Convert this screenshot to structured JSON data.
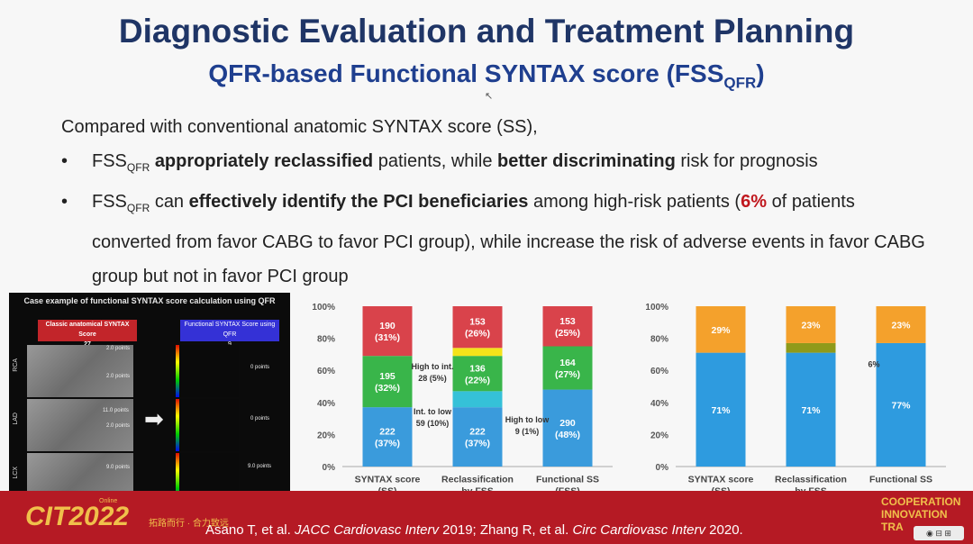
{
  "slide": {
    "title": "Diagnostic Evaluation and Treatment Planning",
    "subtitle_main": "QFR-based Functional SYNTAX score (FSS",
    "subtitle_sub": "QFR",
    "subtitle_end": ")",
    "intro": "Compared with conventional anatomic SYNTAX score (SS),"
  },
  "bullets": {
    "b1": {
      "fss": "FSS",
      "fss_sub": "QFR",
      "p1": "appropriately reclassified",
      "p2": "patients, while",
      "p3": "better discriminating",
      "p4": "risk for prognosis"
    },
    "b2": {
      "fss": "FSS",
      "fss_sub": "QFR",
      "p1": "can",
      "p2": "effectively identify the PCI beneficiaries",
      "p3": "among high-risk patients (",
      "pct": "6%",
      "p4": "of",
      "p5": "patients converted from favor CABG to favor PCI group), while increase the risk of adverse",
      "p6": "events in favor CABG group but not in favor PCI group"
    }
  },
  "case_panel": {
    "title": "Case example of functional SYNTAX score calculation using QFR",
    "classic_label": "Classic anatomical SYNTAX Score",
    "classic_value": "27",
    "functional_label": "Functional SYNTAX Score using QFR",
    "functional_value": "9",
    "vessels": [
      "RCA",
      "LAD",
      "LCX"
    ],
    "points": [
      "2.0 points",
      "2.0 points",
      "11.0 points",
      "2.0 points",
      "9.0 points"
    ],
    "qfr_points": [
      "0 points",
      "0 points",
      "9.0 points"
    ]
  },
  "chart_data": [
    {
      "type": "bar",
      "stacked": true,
      "categories": [
        [
          "SYNTAX score",
          "(SS)"
        ],
        [
          "Reclassification",
          "by FSS"
        ],
        [
          "Functional SS",
          "(FSS)"
        ]
      ],
      "ylim": [
        0,
        100
      ],
      "yticks": [
        "0%",
        "20%",
        "40%",
        "60%",
        "80%",
        "100%"
      ],
      "series": [
        {
          "color": "#3a9bdc",
          "values": [
            37,
            37,
            48
          ],
          "labels": [
            "222\n(37%)",
            "222\n(37%)",
            "290\n(48%)"
          ]
        },
        {
          "color": "#35c1d8",
          "values": [
            0,
            10,
            0
          ],
          "labels": [
            "",
            "",
            ""
          ]
        },
        {
          "color": "#39b54a",
          "values": [
            32,
            22,
            27
          ],
          "labels": [
            "195\n(32%)",
            "136\n(22%)",
            "164\n(27%)"
          ]
        },
        {
          "color": "#f4e31a",
          "values": [
            0,
            5,
            0
          ],
          "labels": [
            "",
            "",
            ""
          ]
        },
        {
          "color": "#d9434b",
          "values": [
            31,
            26,
            25
          ],
          "labels": [
            "190\n(31%)",
            "153\n(26%)",
            "153\n(25%)"
          ]
        }
      ],
      "annotations": [
        {
          "text": "High to int.\n28 (5%)",
          "x": 0.5,
          "y": 57
        },
        {
          "text": "Int. to low\n59 (10%)",
          "x": 0.5,
          "y": 29
        },
        {
          "text": "High to low\n9 (1%)",
          "x": 1.55,
          "y": 24
        }
      ]
    },
    {
      "type": "bar",
      "stacked": true,
      "categories": [
        [
          "SYNTAX score",
          "(SS)"
        ],
        [
          "Reclassification",
          "by FSS"
        ],
        [
          "Functional SS",
          ""
        ]
      ],
      "ylim": [
        0,
        100
      ],
      "yticks": [
        "0%",
        "20%",
        "40%",
        "60%",
        "80%",
        "100%"
      ],
      "series": [
        {
          "color": "#2e9bdf",
          "values": [
            71,
            71,
            77
          ],
          "labels": [
            "71%",
            "71%",
            "77%"
          ]
        },
        {
          "color": "#8f9a1a",
          "values": [
            0,
            6,
            0
          ],
          "labels": [
            "",
            "",
            ""
          ]
        },
        {
          "color": "#f4a12c",
          "values": [
            29,
            23,
            23
          ],
          "labels": [
            "29%",
            "23%",
            "23%"
          ]
        }
      ],
      "annotations": [
        {
          "text": "6%",
          "x": 1.7,
          "y": 62
        }
      ]
    }
  ],
  "footer": {
    "online": "Online",
    "logo": "CIT2022",
    "slogan": "拓路而行 · 合力致远",
    "cite1": "Asano T, et al. ",
    "cite1_journal": "JACC Cardiovasc Interv",
    "cite2": " 2019; Zhang R, et al. ",
    "cite2_journal": "Circ Cardiovasc Interv",
    "cite3": " 2020.",
    "coop": [
      {
        "first": "C",
        "rest": "OOPERATION"
      },
      {
        "first": "I",
        "rest": "NNOVATION"
      },
      {
        "first": "T",
        "rest": "RA"
      }
    ],
    "controls": "◉ ⊟ ⊞"
  }
}
